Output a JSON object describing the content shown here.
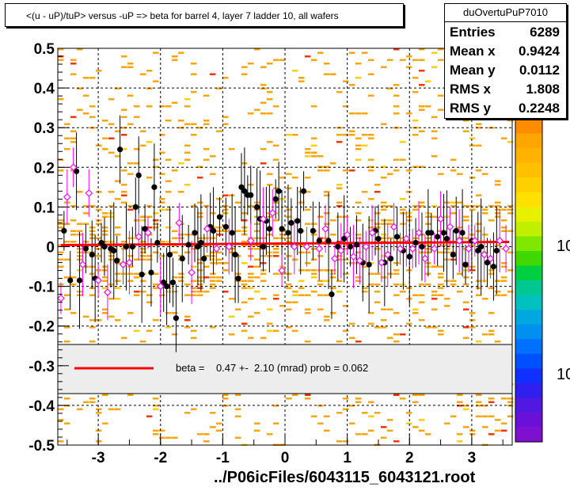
{
  "title": "<(u - uP)/tuP> versus  -uP => beta for barrel 4, layer 7 ladder 10, all wafers",
  "stats": {
    "name": "duOvertuPuP7010",
    "rows": [
      {
        "label": "Entries",
        "value": "6289"
      },
      {
        "label": "Mean x",
        "value": "0.9424"
      },
      {
        "label": "Mean y",
        "value": "0.0112"
      },
      {
        "label": "RMS x",
        "value": "1.808"
      },
      {
        "label": "RMS y",
        "value": "0.2248"
      }
    ]
  },
  "legend": {
    "text": "beta =    0.47 +-  2.10 (mrad) prob = 0.062",
    "line_color": "#ff0000"
  },
  "footer": "../P06icFiles/6043115_6043121.root",
  "colors": {
    "fit": "#ff0000",
    "profile_black": "#000000",
    "profile_magenta": "#ff00ff",
    "heat_orange": "#ffa500"
  },
  "zaxis": {
    "labels": [
      "10",
      "10"
    ]
  },
  "chart_data": {
    "type": "scatter",
    "xlim": [
      -3.65,
      3.65
    ],
    "ylim": [
      -0.5,
      0.5
    ],
    "xticks": [
      "-3",
      "-2",
      "-1",
      "0",
      "1",
      "2",
      "3"
    ],
    "yticks": [
      "-0.5",
      "-0.4",
      "-0.3",
      "-0.2",
      "-0.1",
      "0",
      "0.1",
      "0.2",
      "0.3",
      "0.4",
      "0.5"
    ],
    "grid": true,
    "fit": {
      "x": [
        -3.6,
        3.6
      ],
      "y": [
        0.004,
        0.012
      ]
    },
    "series": [
      {
        "marker": "filled-circle",
        "color": "#000000",
        "x": [
          -3.55,
          -3.45,
          -3.35,
          -3.3,
          -3.2,
          -3.1,
          -3.05,
          -2.95,
          -2.9,
          -2.8,
          -2.75,
          -2.7,
          -2.65,
          -2.55,
          -2.45,
          -2.4,
          -2.35,
          -2.3,
          -2.25,
          -2.15,
          -2.1,
          -2.05,
          -1.95,
          -1.9,
          -1.85,
          -1.8,
          -1.75,
          -1.65,
          -1.55,
          -1.45,
          -1.4,
          -1.35,
          -1.3,
          -1.2,
          -1.15,
          -1.05,
          -0.95,
          -0.85,
          -0.8,
          -0.75,
          -0.7,
          -0.65,
          -0.6,
          -0.55,
          -0.45,
          -0.4,
          -0.35,
          -0.3,
          -0.25,
          -0.15,
          -0.1,
          -0.05,
          0.05,
          0.1,
          0.2,
          0.25,
          0.3,
          0.45,
          0.55,
          0.7,
          0.75,
          0.85,
          0.95,
          1.05,
          1.15,
          1.25,
          1.35,
          1.45,
          1.5,
          1.6,
          1.7,
          1.8,
          1.9,
          2.0,
          2.1,
          2.2,
          2.3,
          2.35,
          2.45,
          2.55,
          2.6,
          2.7,
          2.75,
          2.85,
          2.9,
          3.0,
          3.1,
          3.15,
          3.25,
          3.35,
          3.4
        ],
        "y": [
          0.04,
          -0.085,
          0.19,
          -0.085,
          -0.005,
          -0.02,
          -0.08,
          0.01,
          0.0,
          -0.005,
          -0.01,
          -0.035,
          0.245,
          0.0,
          0.0,
          0.1,
          0.18,
          -0.07,
          0.045,
          -0.065,
          0.15,
          0.01,
          -0.09,
          -0.1,
          -0.02,
          -0.09,
          -0.18,
          -0.03,
          0.005,
          0.035,
          0.0,
          0.01,
          -0.03,
          0.05,
          0.04,
          0.075,
          0.05,
          0.035,
          -0.02,
          -0.08,
          0.15,
          0.14,
          0.13,
          0.13,
          0.1,
          0.07,
          0.0,
          0.065,
          0.045,
          0.12,
          0.14,
          0.045,
          0.035,
          0.06,
          0.065,
          0.04,
          0.14,
          0.04,
          0.015,
          0.015,
          -0.12,
          0.0,
          0.02,
          0.0,
          0.005,
          -0.04,
          -0.045,
          0.04,
          0.02,
          -0.04,
          -0.03,
          0.025,
          -0.01,
          -0.025,
          0.01,
          0.0,
          0.035,
          0.035,
          0.025,
          0.035,
          0.02,
          -0.02,
          0.04,
          0.035,
          -0.045,
          0.015,
          -0.01,
          0.0,
          -0.04,
          -0.05,
          -0.01
        ]
      },
      {
        "marker": "open-diamond",
        "color": "#ff00ff",
        "x": [
          -3.6,
          -3.5,
          -3.4,
          -3.25,
          -3.15,
          -3.0,
          -2.85,
          -2.6,
          -2.5,
          -2.35,
          -2.2,
          -2.0,
          -1.7,
          -1.5,
          -1.25,
          -1.1,
          -0.9,
          -0.55,
          -0.35,
          -0.2,
          -0.05,
          0.15,
          0.35,
          0.55,
          0.65,
          0.8,
          0.9,
          1.0,
          1.1,
          1.2,
          1.3,
          1.4,
          1.55,
          1.65,
          1.75,
          1.85,
          1.95,
          2.05,
          2.15,
          2.25,
          2.4,
          2.5,
          2.65,
          2.8,
          2.95,
          3.05,
          3.2,
          3.3,
          3.45,
          3.55
        ],
        "y": [
          -0.13,
          0.125,
          0.2,
          -0.045,
          0.135,
          -0.085,
          -0.115,
          -0.045,
          -0.04,
          0.025,
          0.035,
          -0.1,
          0.06,
          -0.065,
          0.045,
          -0.005,
          0.0,
          0.015,
          0.07,
          0.085,
          -0.06,
          0.0,
          0.0,
          -0.005,
          0.045,
          -0.03,
          -0.01,
          0.03,
          -0.025,
          -0.035,
          0.0,
          0.035,
          -0.04,
          -0.02,
          0.05,
          -0.005,
          0.02,
          -0.005,
          0.035,
          -0.03,
          -0.005,
          0.07,
          0.05,
          0.015,
          -0.005,
          0.015,
          -0.02,
          -0.03,
          0.015,
          -0.005
        ]
      }
    ]
  }
}
